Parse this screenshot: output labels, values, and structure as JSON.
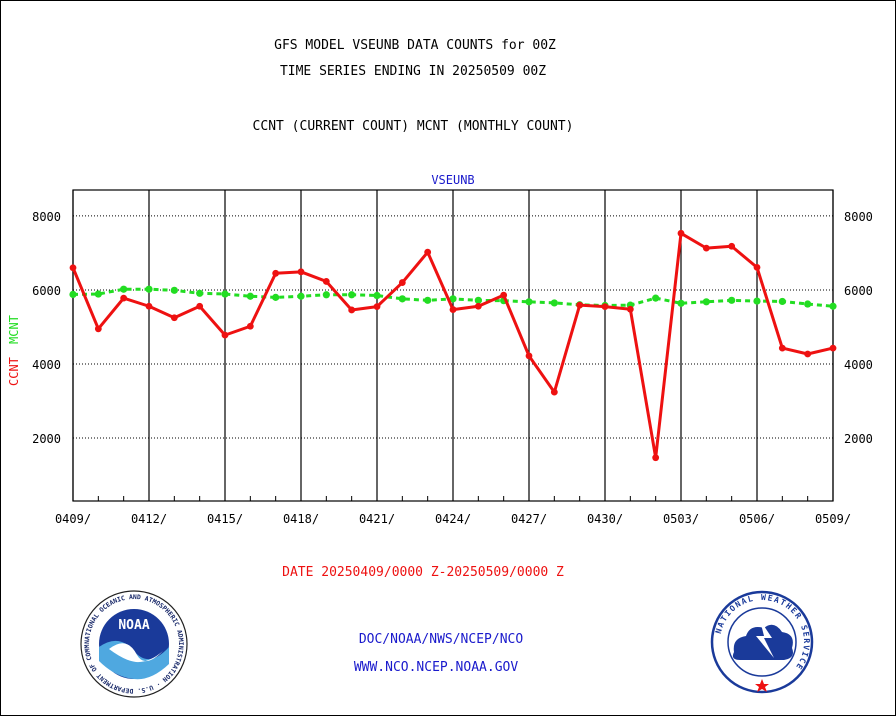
{
  "header": {
    "title_line1": "GFS MODEL VSEUNB DATA COUNTS for 00Z",
    "title_line2": "TIME SERIES ENDING IN 20250509 00Z",
    "subtitle": "CCNT (CURRENT COUNT) MCNT (MONTHLY COUNT)"
  },
  "footer": {
    "date_range": "DATE 20250409/0000 Z-20250509/0000 Z",
    "org": "DOC/NOAA/NWS/NCEP/NCO",
    "url": "WWW.NCO.NCEP.NOAA.GOV"
  },
  "logos": {
    "noaa": "NOAA",
    "noaa_ring": "NATIONAL OCEANIC AND ATMOSPHERIC ADMINISTRATION · U.S. DEPARTMENT OF COMMERCE ·",
    "nws_ring": "NATIONAL WEATHER SERVICE"
  },
  "colors": {
    "ccnt": "#ee1111",
    "mcnt": "#22dd22",
    "title_blue": "#1a1acc",
    "grid": "#000000"
  },
  "chart_data": {
    "type": "line",
    "title": "VSEUNB",
    "ylabel_ccnt": "CCNT",
    "ylabel_mcnt": "MCNT",
    "ylim": [
      300,
      8700
    ],
    "yticks": [
      2000,
      4000,
      6000,
      8000
    ],
    "x_tick_labels": [
      "0409/",
      "0412/",
      "0415/",
      "0418/",
      "0421/",
      "0424/",
      "0427/",
      "0430/",
      "0503/",
      "0506/",
      "0509/"
    ],
    "x_days": 30,
    "grid": true,
    "series": [
      {
        "name": "CCNT",
        "color": "#ee1111",
        "x": [
          0,
          1,
          2,
          3,
          4,
          5,
          6,
          7,
          8,
          9,
          10,
          11,
          12,
          13,
          14,
          15,
          16,
          17,
          18,
          19,
          20,
          21,
          22,
          23,
          24,
          25,
          26,
          27,
          28,
          29,
          30
        ],
        "values": [
          6600,
          4950,
          5780,
          5560,
          5250,
          5560,
          4780,
          5020,
          6450,
          6490,
          6230,
          5460,
          5550,
          6200,
          7020,
          5470,
          5560,
          5860,
          4220,
          3240,
          5590,
          5550,
          5480,
          1470,
          7530,
          7130,
          7180,
          6610,
          4430,
          4270,
          4430
        ]
      },
      {
        "name": "MCNT",
        "color": "#22dd22",
        "x": [
          0,
          1,
          2,
          3,
          4,
          5,
          6,
          7,
          8,
          9,
          10,
          11,
          12,
          13,
          14,
          15,
          16,
          17,
          18,
          19,
          20,
          21,
          22,
          23,
          24,
          25,
          26,
          27,
          28,
          29,
          30
        ],
        "values": [
          5880,
          5890,
          6020,
          6020,
          5990,
          5910,
          5890,
          5830,
          5800,
          5830,
          5870,
          5870,
          5850,
          5760,
          5720,
          5760,
          5720,
          5710,
          5680,
          5650,
          5600,
          5580,
          5590,
          5780,
          5640,
          5680,
          5720,
          5700,
          5690,
          5620,
          5560
        ]
      }
    ]
  }
}
